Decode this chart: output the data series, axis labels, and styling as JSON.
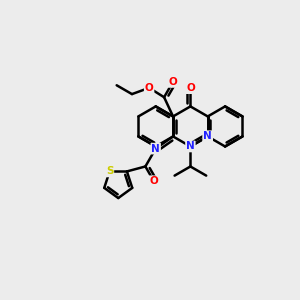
{
  "bg_color": "#ececec",
  "bond_color": "#000000",
  "bond_width": 1.8,
  "atom_colors": {
    "N": "#2222ff",
    "O": "#ff0000",
    "S": "#cccc00",
    "C": "#000000"
  },
  "font_size": 7.5
}
